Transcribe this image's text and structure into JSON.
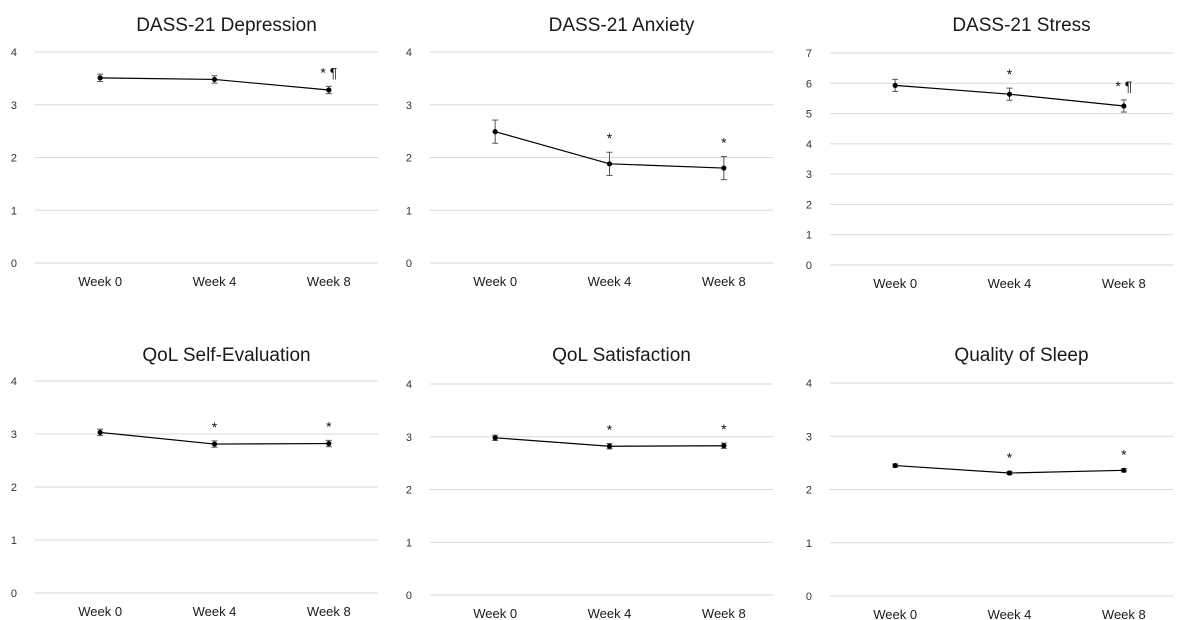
{
  "colors": {
    "line": "#000000",
    "grid": "#d9d9d9",
    "text": "#1a1a1a"
  },
  "chart_data": [
    {
      "type": "line",
      "title": "DASS-21 Depression",
      "categories": [
        "Week 0",
        "Week 4",
        "Week 8"
      ],
      "values": [
        3.51,
        3.48,
        3.28
      ],
      "errors": [
        0.07,
        0.07,
        0.07
      ],
      "annotations": [
        "",
        "",
        "* ¶"
      ],
      "ylim": [
        0,
        4
      ],
      "yticks": [
        "0",
        "1",
        "2",
        "3",
        "4"
      ],
      "grid": true
    },
    {
      "type": "line",
      "title": "DASS-21 Anxiety",
      "categories": [
        "Week 0",
        "Week 4",
        "Week 8"
      ],
      "values": [
        2.49,
        1.88,
        1.8
      ],
      "errors": [
        0.22,
        0.22,
        0.22
      ],
      "annotations": [
        "",
        "*",
        "*"
      ],
      "ylim": [
        0,
        4
      ],
      "yticks": [
        "0",
        "1",
        "2",
        "3",
        "4"
      ],
      "grid": true
    },
    {
      "type": "line",
      "title": "DASS-21 Stress",
      "categories": [
        "Week 0",
        "Week 4",
        "Week 8"
      ],
      "values": [
        5.93,
        5.64,
        5.25
      ],
      "errors": [
        0.2,
        0.2,
        0.2
      ],
      "annotations": [
        "",
        "*",
        "* ¶"
      ],
      "ylim": [
        0,
        7
      ],
      "yticks": [
        "0",
        "1",
        "2",
        "3",
        "4",
        "5",
        "6",
        "7"
      ],
      "grid": true
    },
    {
      "type": "line",
      "title": "QoL Self-Evaluation",
      "categories": [
        "Week 0",
        "Week 4",
        "Week 8"
      ],
      "values": [
        3.03,
        2.81,
        2.82
      ],
      "errors": [
        0.06,
        0.06,
        0.06
      ],
      "annotations": [
        "",
        "*",
        "*"
      ],
      "ylim": [
        0,
        4
      ],
      "yticks": [
        "0",
        "1",
        "2",
        "3",
        "4"
      ],
      "grid": true
    },
    {
      "type": "line",
      "title": "QoL Satisfaction",
      "categories": [
        "Week 0",
        "Week 4",
        "Week 8"
      ],
      "values": [
        2.98,
        2.82,
        2.83
      ],
      "errors": [
        0.05,
        0.05,
        0.05
      ],
      "annotations": [
        "",
        "*",
        "*"
      ],
      "ylim": [
        0,
        4
      ],
      "yticks": [
        "0",
        "1",
        "2",
        "3",
        "4"
      ],
      "grid": true
    },
    {
      "type": "line",
      "title": "Quality of Sleep",
      "categories": [
        "Week 0",
        "Week 4",
        "Week 8"
      ],
      "values": [
        2.45,
        2.31,
        2.36
      ],
      "errors": [
        0.03,
        0.03,
        0.03
      ],
      "annotations": [
        "",
        "*",
        "*"
      ],
      "ylim": [
        0,
        4
      ],
      "yticks": [
        "0",
        "1",
        "2",
        "3",
        "4"
      ],
      "grid": true
    }
  ]
}
